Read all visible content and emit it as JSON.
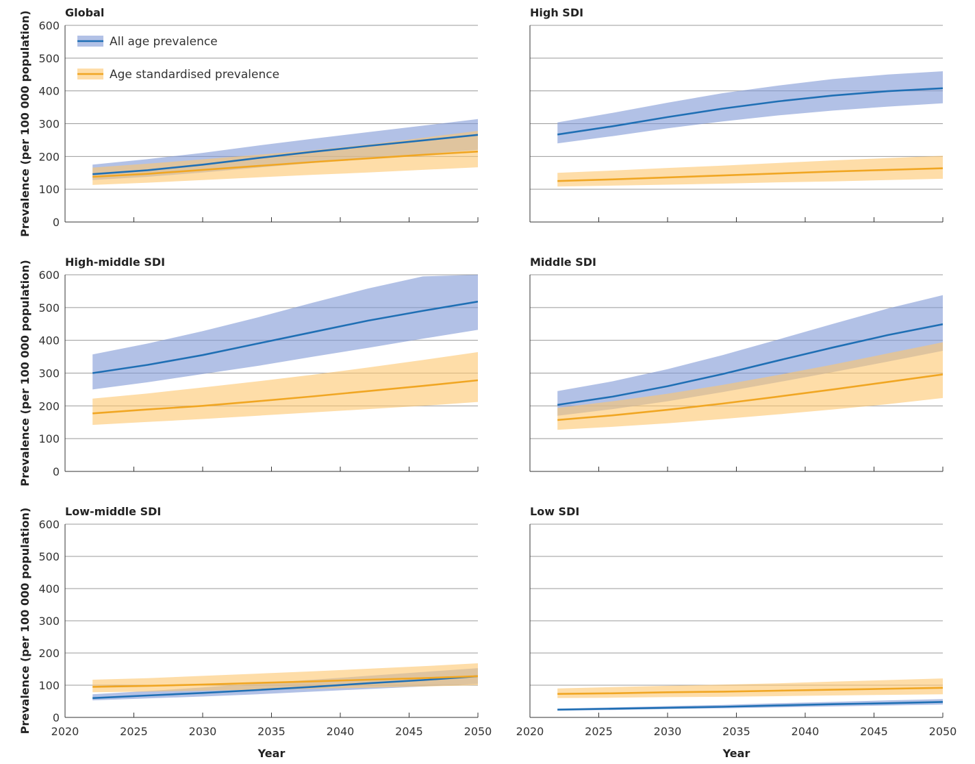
{
  "chart_data": {
    "type": "line",
    "ylabel": "Prevalence (per 100 000 population)",
    "xlabel": "Year",
    "xlim": [
      2020,
      2050
    ],
    "ylim": [
      0,
      600
    ],
    "x_ticks": [
      2020,
      2025,
      2030,
      2035,
      2040,
      2045,
      2050
    ],
    "y_ticks": [
      0,
      100,
      200,
      300,
      400,
      500,
      600
    ],
    "legend": {
      "placement": "top-left of Global panel",
      "entries": [
        {
          "name": "All age prevalence",
          "color": "#1f6fb4",
          "band_color": "#7f97d6"
        },
        {
          "name": "Age standardised prevalence",
          "color": "#f0a623",
          "band_color": "#fdc66e"
        }
      ]
    },
    "x": [
      2022,
      2026,
      2030,
      2034,
      2038,
      2042,
      2046,
      2050
    ],
    "panels": [
      {
        "title": "Global",
        "series": [
          {
            "name": "All age prevalence",
            "values": [
              146,
              158,
              175,
              195,
              214,
              232,
              249,
              266
            ],
            "lower": [
              128,
              138,
              151,
              166,
              180,
              194,
              207,
              220
            ],
            "upper": [
              175,
              192,
              211,
              233,
              254,
              274,
              294,
              314
            ]
          },
          {
            "name": "Age standardised prevalence",
            "values": [
              138,
              147,
              159,
              171,
              183,
              194,
              205,
              215
            ],
            "lower": [
              113,
              120,
              128,
              136,
              144,
              151,
              159,
              167
            ],
            "upper": [
              166,
              178,
              191,
              205,
              219,
              236,
              257,
              278
            ]
          }
        ]
      },
      {
        "title": "High SDI",
        "series": [
          {
            "name": "All age prevalence",
            "values": [
              267,
              292,
              320,
              346,
              368,
              386,
              399,
              408
            ],
            "lower": [
              240,
              262,
              286,
              307,
              325,
              340,
              352,
              362
            ],
            "upper": [
              304,
              333,
              364,
              393,
              416,
              436,
              450,
              460
            ]
          },
          {
            "name": "Age standardised prevalence",
            "values": [
              125,
              130,
              136,
              142,
              148,
              154,
              159,
              164
            ],
            "lower": [
              108,
              111,
              114,
              117,
              121,
              124,
              128,
              132
            ],
            "upper": [
              150,
              157,
              165,
              172,
              180,
              188,
              195,
              202
            ]
          }
        ]
      },
      {
        "title": "High-middle SDI",
        "series": [
          {
            "name": "All age prevalence",
            "values": [
              300,
              325,
              355,
              390,
              425,
              460,
              490,
              518
            ],
            "lower": [
              250,
              272,
              297,
              322,
              350,
              377,
              405,
              432
            ],
            "upper": [
              357,
              390,
              428,
              470,
              515,
              558,
              595,
              600
            ]
          },
          {
            "name": "Age standardised prevalence",
            "values": [
              177,
              189,
              200,
              214,
              229,
              245,
              261,
              278
            ],
            "lower": [
              142,
              151,
              160,
              170,
              180,
              190,
              200,
              212
            ],
            "upper": [
              222,
              238,
              256,
              275,
              295,
              317,
              340,
              364
            ]
          }
        ]
      },
      {
        "title": "Middle SDI",
        "series": [
          {
            "name": "All age prevalence",
            "values": [
              203,
              228,
              260,
              297,
              338,
              378,
              416,
              449
            ],
            "lower": [
              170,
              190,
              214,
              242,
              272,
              303,
              335,
              368
            ],
            "upper": [
              245,
              275,
              312,
              355,
              402,
              450,
              497,
              538
            ]
          },
          {
            "name": "Age standardised prevalence",
            "values": [
              157,
              171,
              188,
              207,
              228,
              250,
              273,
              296
            ],
            "lower": [
              127,
              136,
              147,
              160,
              174,
              189,
              205,
              224
            ],
            "upper": [
              194,
              214,
              237,
              264,
              294,
              326,
              360,
              394
            ]
          }
        ]
      },
      {
        "title": "Low-middle SDI",
        "series": [
          {
            "name": "All age prevalence",
            "values": [
              60,
              68,
              76,
              85,
              95,
              106,
              116,
              128
            ],
            "lower": [
              53,
              59,
              65,
              72,
              80,
              88,
              96,
              104
            ],
            "upper": [
              72,
              82,
              93,
              105,
              117,
              129,
              141,
              153
            ]
          },
          {
            "name": "Age standardised prevalence",
            "values": [
              95,
              98,
              102,
              107,
              112,
              117,
              122,
              128
            ],
            "lower": [
              78,
              80,
              83,
              86,
              89,
              92,
              96,
              100
            ],
            "upper": [
              117,
              122,
              129,
              136,
              143,
              151,
              159,
              168
            ]
          }
        ]
      },
      {
        "title": "Low SDI",
        "series": [
          {
            "name": "All age prevalence",
            "values": [
              24,
              27,
              30,
              33,
              37,
              41,
              44,
              48
            ],
            "lower": [
              21,
              23,
              26,
              28,
              31,
              34,
              37,
              40
            ],
            "upper": [
              27,
              31,
              35,
              39,
              44,
              48,
              53,
              57
            ]
          },
          {
            "name": "Age standardised prevalence",
            "values": [
              73,
              75,
              78,
              80,
              83,
              86,
              89,
              92
            ],
            "lower": [
              60,
              61,
              63,
              64,
              66,
              68,
              70,
              72
            ],
            "upper": [
              90,
              94,
              98,
              102,
              106,
              111,
              116,
              121
            ]
          }
        ]
      }
    ]
  }
}
